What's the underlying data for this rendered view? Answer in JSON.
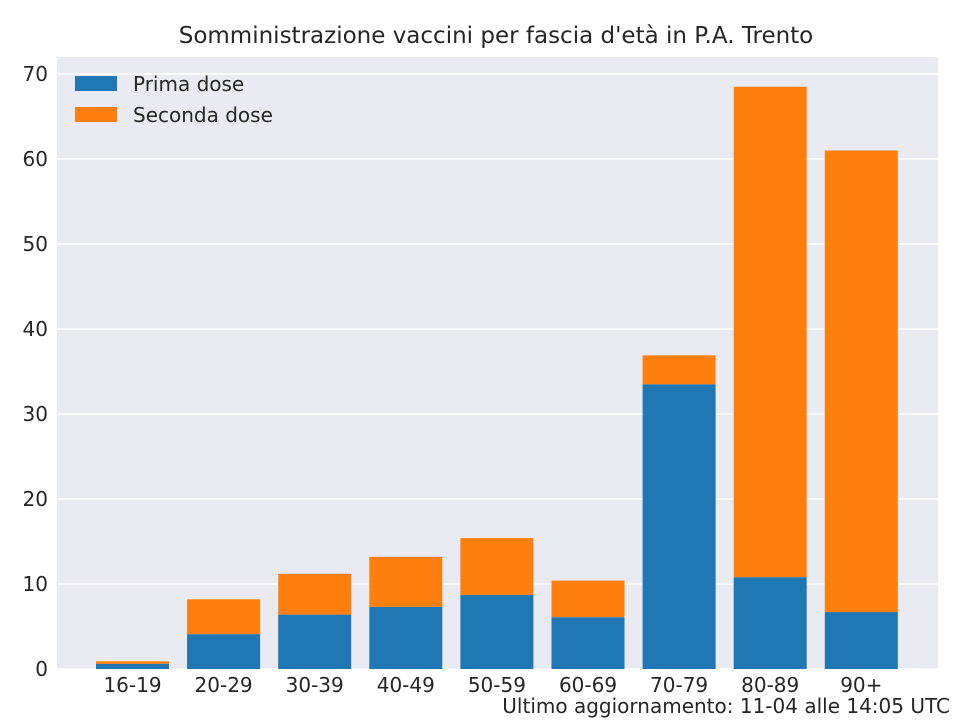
{
  "chart_data": {
    "type": "bar",
    "stacked": true,
    "title": "Somministrazione vaccini per fascia d'età in P.A. Trento",
    "xlabel": "",
    "ylabel": "",
    "categories": [
      "16-19",
      "20-29",
      "30-39",
      "40-49",
      "50-59",
      "60-69",
      "70-79",
      "80-89",
      "90+"
    ],
    "series": [
      {
        "name": "Prima dose",
        "color": "#1f77b4",
        "values": [
          0.6,
          4.1,
          6.4,
          7.3,
          8.7,
          6.1,
          33.5,
          10.8,
          6.7
        ]
      },
      {
        "name": "Seconda dose",
        "color": "#ff7f0e",
        "values": [
          0.3,
          4.1,
          4.8,
          5.9,
          6.7,
          4.3,
          3.4,
          57.7,
          54.3
        ]
      }
    ],
    "ylim": [
      0,
      72
    ],
    "yticks": [
      0,
      10,
      20,
      30,
      40,
      50,
      60,
      70
    ],
    "grid": true,
    "legend_position": "top-left",
    "background_color": "#eaeaf2",
    "grid_color": "#ffffff"
  },
  "footnote": "Ultimo aggiornamento: 11-04 alle 14:05 UTC"
}
